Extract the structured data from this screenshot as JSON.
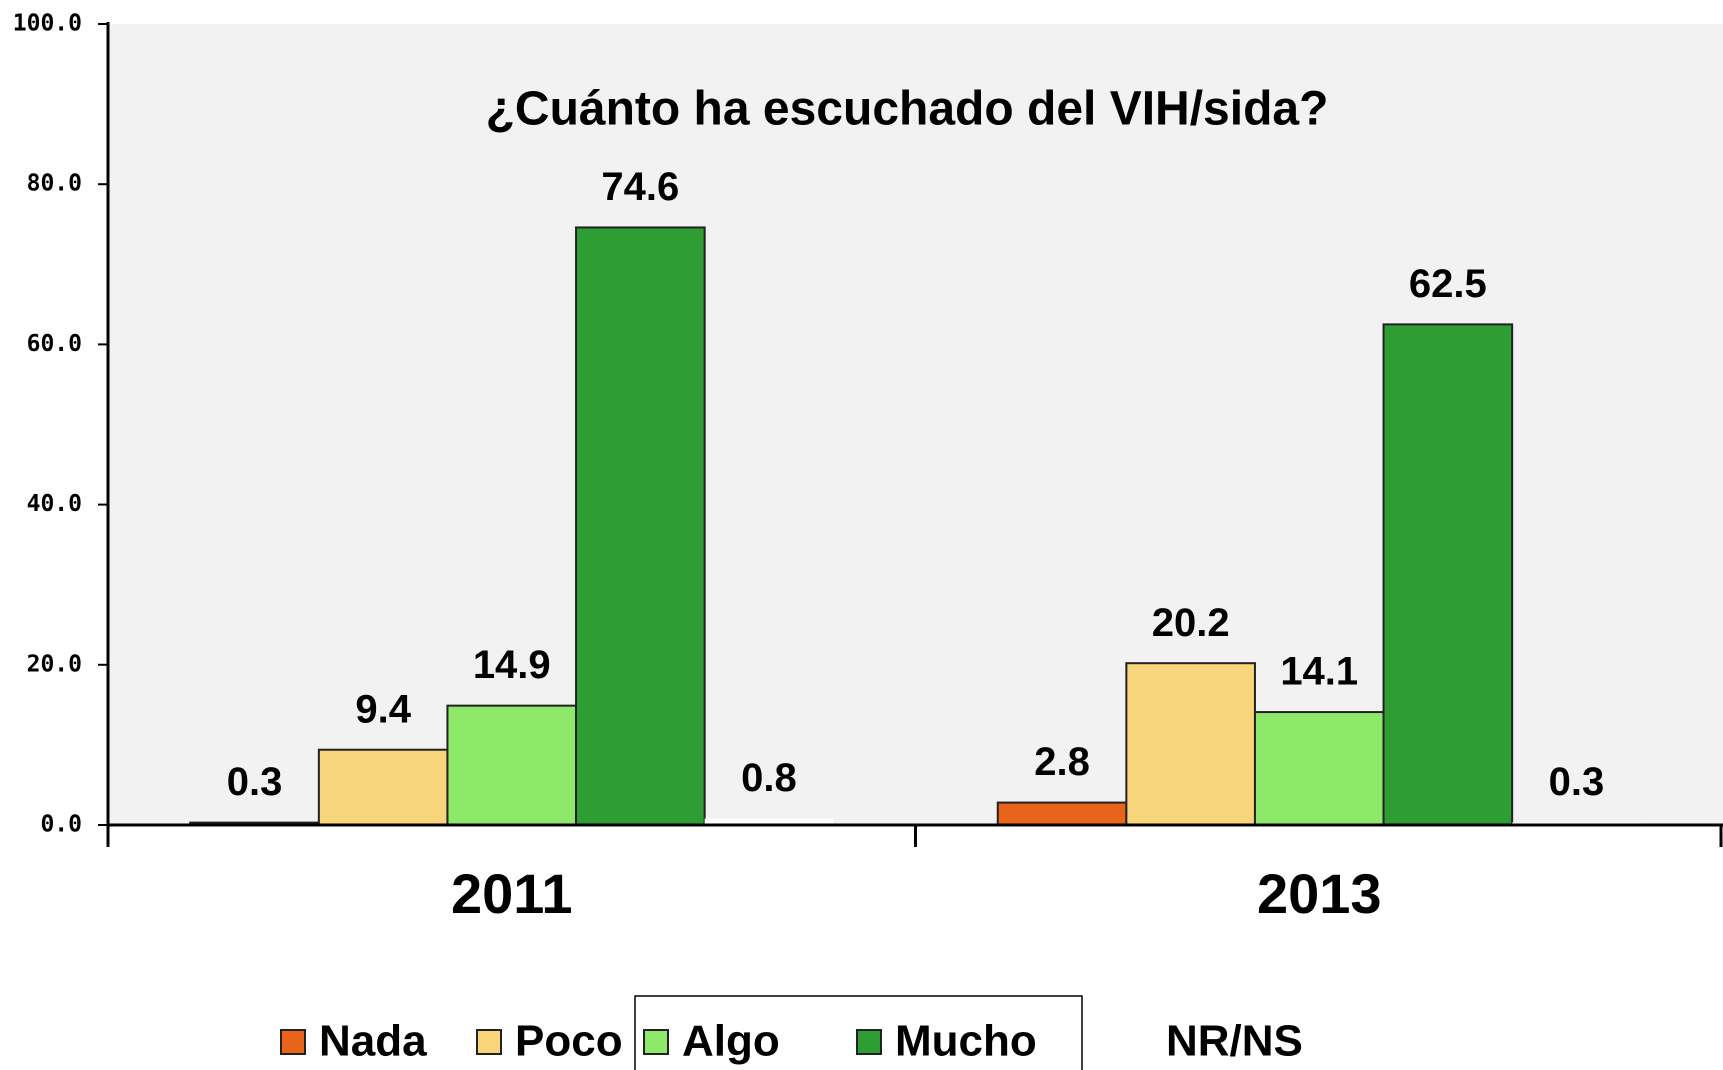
{
  "chart_data": {
    "type": "bar",
    "title": "¿Cuánto ha escuchado del VIH/sida?",
    "categories": [
      "2011",
      "2013"
    ],
    "series": [
      {
        "name": "Nada",
        "color": "#e8641a",
        "values": [
          0.3,
          2.8
        ]
      },
      {
        "name": "Poco",
        "color": "#f8d47a",
        "values": [
          9.4,
          20.2
        ]
      },
      {
        "name": "Algo",
        "color": "#8ee86a",
        "values": [
          14.9,
          14.1
        ]
      },
      {
        "name": "Mucho",
        "color": "#2e9e34",
        "values": [
          74.6,
          62.5
        ]
      },
      {
        "name": "NR/NS",
        "color": "#ffffff",
        "values": [
          0.8,
          0.3
        ]
      }
    ],
    "ylim": [
      0,
      100
    ],
    "yticks": [
      {
        "value": 0,
        "label": "0.0"
      },
      {
        "value": 20,
        "label": "20.0"
      },
      {
        "value": 40,
        "label": "40.0"
      },
      {
        "value": 60,
        "label": "60.0"
      },
      {
        "value": 80,
        "label": "80.0"
      },
      {
        "value": 100,
        "label": "100.0"
      }
    ],
    "legend": "bottom"
  }
}
